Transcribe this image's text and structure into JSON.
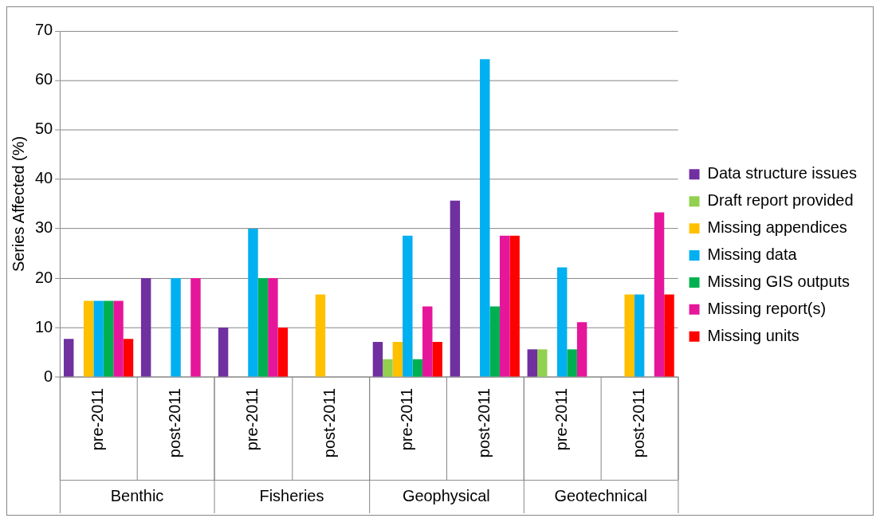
{
  "chart_data": {
    "type": "bar",
    "ylabel": "Series Affected (%)",
    "categories": [
      "pre-2011",
      "post-2011",
      "pre-2011",
      "post-2011",
      "pre-2011",
      "post-2011",
      "pre-2011",
      "post-2011"
    ],
    "annotations": [
      "Benthic",
      "Fisheries",
      "Geophysical",
      "Geotechnical"
    ],
    "series": [
      {
        "name": "Data structure issues",
        "color": "#7030a0",
        "values": [
          7.7,
          20,
          10,
          0,
          7.1,
          35.7,
          5.6,
          0
        ]
      },
      {
        "name": "Draft report provided",
        "color": "#92d050",
        "values": [
          0,
          0,
          0,
          0,
          3.6,
          0,
          5.6,
          0
        ]
      },
      {
        "name": "Missing appendices",
        "color": "#ffc000",
        "values": [
          15.4,
          0,
          0,
          16.7,
          7.1,
          0,
          0,
          16.7
        ]
      },
      {
        "name": "Missing data",
        "color": "#00b0f0",
        "values": [
          15.4,
          20,
          30,
          0,
          28.6,
          64.3,
          22.2,
          16.7
        ]
      },
      {
        "name": "Missing GIS outputs",
        "color": "#00b050",
        "values": [
          15.4,
          0,
          20,
          0,
          3.6,
          14.3,
          5.6,
          0
        ]
      },
      {
        "name": "Missing report(s)",
        "color": "#e6169b",
        "values": [
          15.4,
          20,
          20,
          0,
          14.3,
          28.6,
          11.1,
          33.3
        ]
      },
      {
        "name": "Missing units",
        "color": "#ff0000",
        "values": [
          7.7,
          0,
          10,
          0,
          7.1,
          28.6,
          0,
          16.7
        ]
      }
    ],
    "ylim": [
      0,
      70
    ],
    "yticks": [
      0,
      10,
      20,
      30,
      40,
      50,
      60,
      70
    ],
    "grid": "y",
    "legend": "right"
  }
}
